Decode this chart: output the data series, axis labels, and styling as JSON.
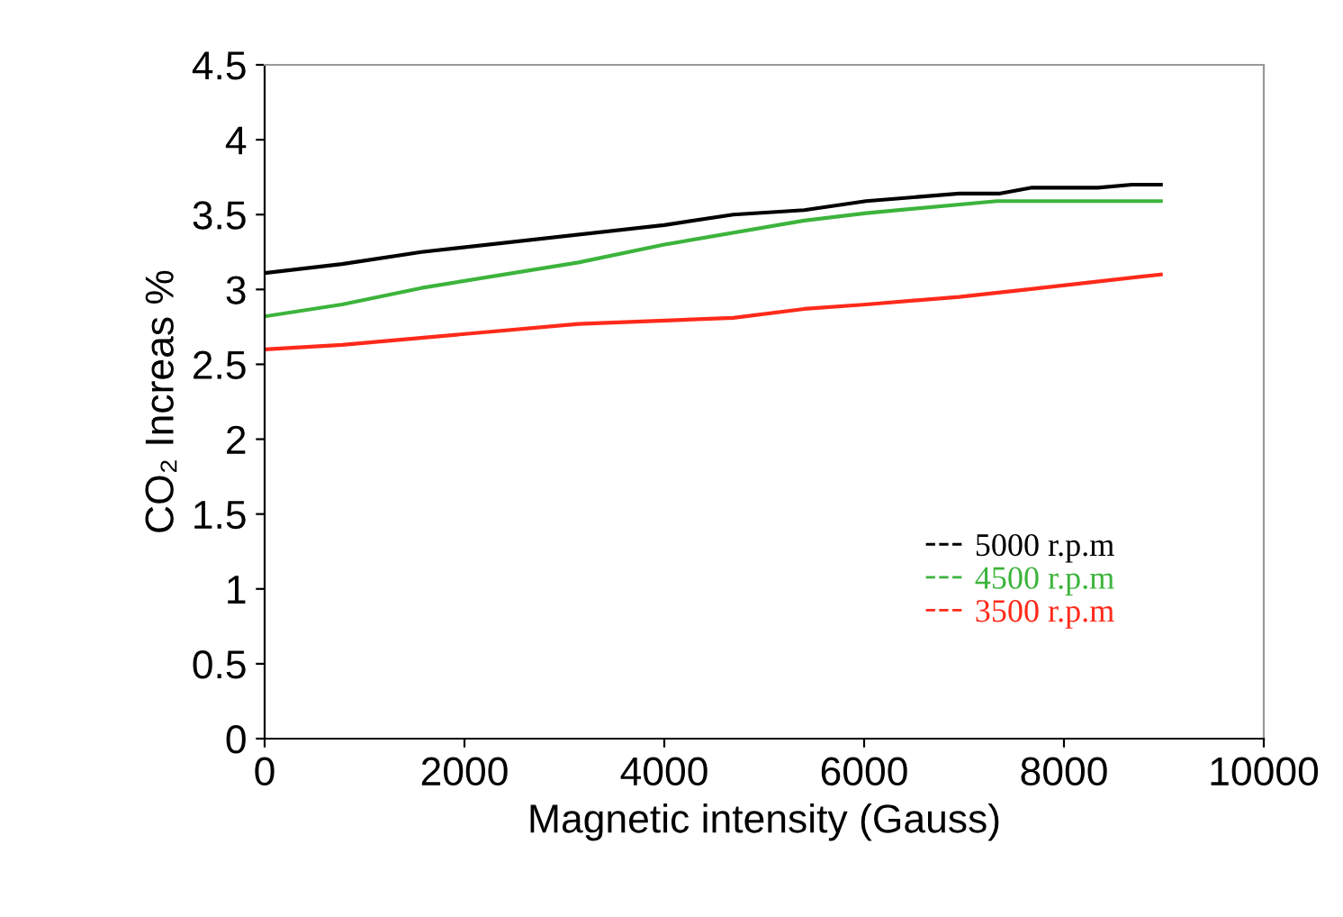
{
  "chart_data": {
    "type": "line",
    "xlabel": "Magnetic intensity (Gauss)",
    "ylabel": "CO₂ Increas %",
    "xlim": [
      0,
      10000
    ],
    "ylim": [
      0,
      4.5
    ],
    "xticks": [
      0,
      2000,
      4000,
      6000,
      8000,
      10000
    ],
    "yticks": [
      0,
      0.5,
      1,
      1.5,
      2,
      2.5,
      3,
      3.5,
      4,
      4.5
    ],
    "grid": false,
    "legend": "bottom right",
    "line_style": "solid",
    "marker": "none",
    "series": [
      {
        "name": "5000 r.p.m",
        "color": "#000000",
        "x": [
          0,
          775,
          1570,
          4000,
          4690,
          5400,
          6020,
          6950,
          7350,
          7680,
          8340,
          8680,
          8970
        ],
        "values": [
          3.11,
          3.17,
          3.25,
          3.43,
          3.5,
          3.53,
          3.59,
          3.64,
          3.64,
          3.68,
          3.68,
          3.7,
          3.7
        ]
      },
      {
        "name": "4500 r.p.m",
        "color": "#3cb43c",
        "x": [
          0,
          775,
          1570,
          3140,
          4000,
          5400,
          6020,
          7330,
          8970
        ],
        "values": [
          2.82,
          2.9,
          3.01,
          3.18,
          3.3,
          3.46,
          3.51,
          3.59,
          3.59
        ]
      },
      {
        "name": "3500 r.p.m",
        "color": "#ff2a1a",
        "x": [
          0,
          775,
          3140,
          4690,
          5400,
          6020,
          6950,
          7630,
          8970
        ],
        "values": [
          2.6,
          2.63,
          2.77,
          2.81,
          2.87,
          2.9,
          2.95,
          3.0,
          3.1
        ]
      }
    ]
  }
}
